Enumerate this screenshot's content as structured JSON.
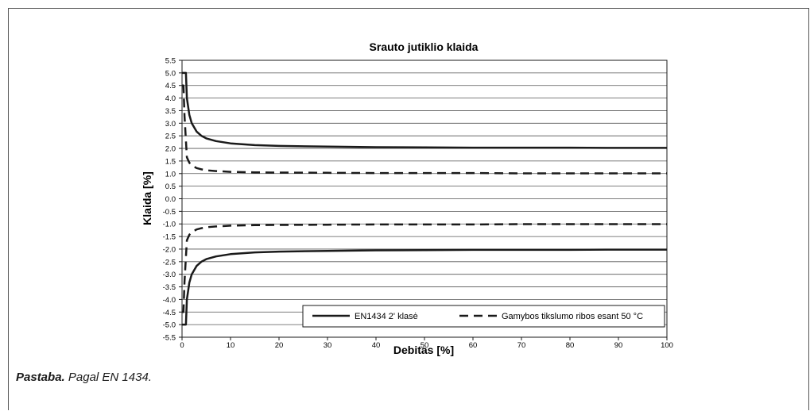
{
  "note": {
    "label": "Pastaba.",
    "text": "Pagal EN 1434."
  },
  "chart_data": {
    "type": "line",
    "title": "Srauto jutiklio klaida",
    "xlabel": "Debitas [%]",
    "ylabel": "Klaida [%]",
    "xlim": [
      0,
      100
    ],
    "ylim": [
      -5.5,
      5.5
    ],
    "xticks": [
      "0",
      "10",
      "20",
      "30",
      "40",
      "50",
      "60",
      "70",
      "80",
      "90",
      "100"
    ],
    "yticks": [
      "5.5",
      "5.0",
      "4.5",
      "4.0",
      "3.5",
      "3.0",
      "2.5",
      "2.0",
      "1.5",
      "1.0",
      "0.5",
      "0.0",
      "-0.5",
      "-1.0",
      "-1.5",
      "-2.0",
      "-2.5",
      "-3.0",
      "-3.5",
      "-4.0",
      "-4.5",
      "-5.0",
      "-5.5"
    ],
    "grid": "horizontal",
    "legend_position": "bottom-right",
    "series": [
      {
        "name": "EN1434 2' klasė",
        "style": "solid",
        "color": "#1a1a1a",
        "x": [
          0.4,
          0.8,
          1,
          1.5,
          2,
          3,
          4,
          5,
          7,
          10,
          15,
          20,
          30,
          40,
          50,
          60,
          70,
          80,
          90,
          100
        ],
        "upper": [
          5.0,
          5.0,
          4.0,
          3.33,
          3.0,
          2.67,
          2.5,
          2.4,
          2.29,
          2.2,
          2.13,
          2.1,
          2.07,
          2.05,
          2.04,
          2.03,
          2.03,
          2.03,
          2.02,
          2.02
        ],
        "lower": [
          -5.0,
          -5.0,
          -4.0,
          -3.33,
          -3.0,
          -2.67,
          -2.5,
          -2.4,
          -2.29,
          -2.2,
          -2.13,
          -2.1,
          -2.07,
          -2.05,
          -2.04,
          -2.03,
          -2.03,
          -2.03,
          -2.02,
          -2.02
        ]
      },
      {
        "name": "Gamybos tikslumo ribos esant 50 °C",
        "style": "dashed",
        "color": "#1a1a1a",
        "x": [
          0.3,
          0.5,
          1,
          1.5,
          2,
          3,
          4,
          5,
          7,
          10,
          15,
          20,
          30,
          40,
          50,
          60,
          70,
          80,
          90,
          100
        ],
        "upper": [
          4.5,
          3.3,
          1.65,
          1.43,
          1.33,
          1.22,
          1.17,
          1.13,
          1.1,
          1.07,
          1.05,
          1.04,
          1.03,
          1.02,
          1.02,
          1.02,
          1.01,
          1.01,
          1.01,
          1.01
        ],
        "lower": [
          -4.5,
          -3.3,
          -1.65,
          -1.43,
          -1.33,
          -1.22,
          -1.17,
          -1.13,
          -1.1,
          -1.07,
          -1.05,
          -1.04,
          -1.03,
          -1.02,
          -1.02,
          -1.02,
          -1.01,
          -1.01,
          -1.01,
          -1.01
        ]
      }
    ]
  }
}
